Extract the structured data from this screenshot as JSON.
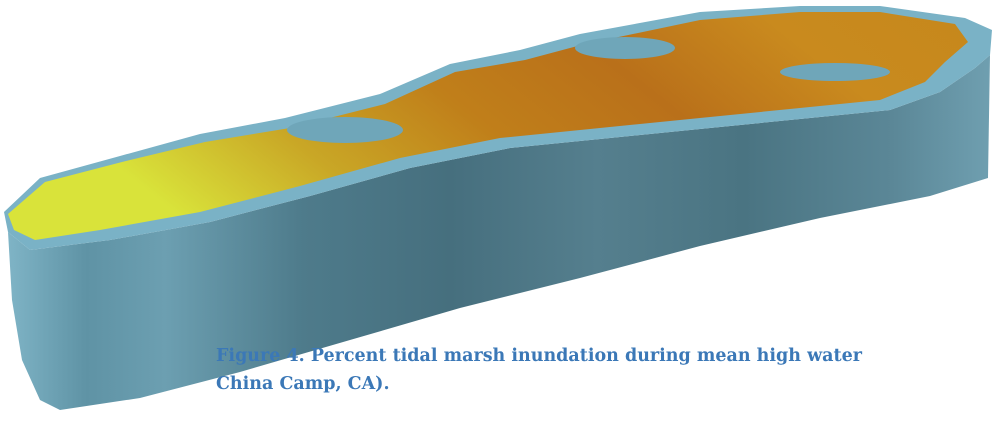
{
  "figure": {
    "caption": {
      "lines": [
        "Figure 4. Percent tidal marsh inundation during mean high water",
        "China Camp, CA)."
      ]
    }
  }
}
